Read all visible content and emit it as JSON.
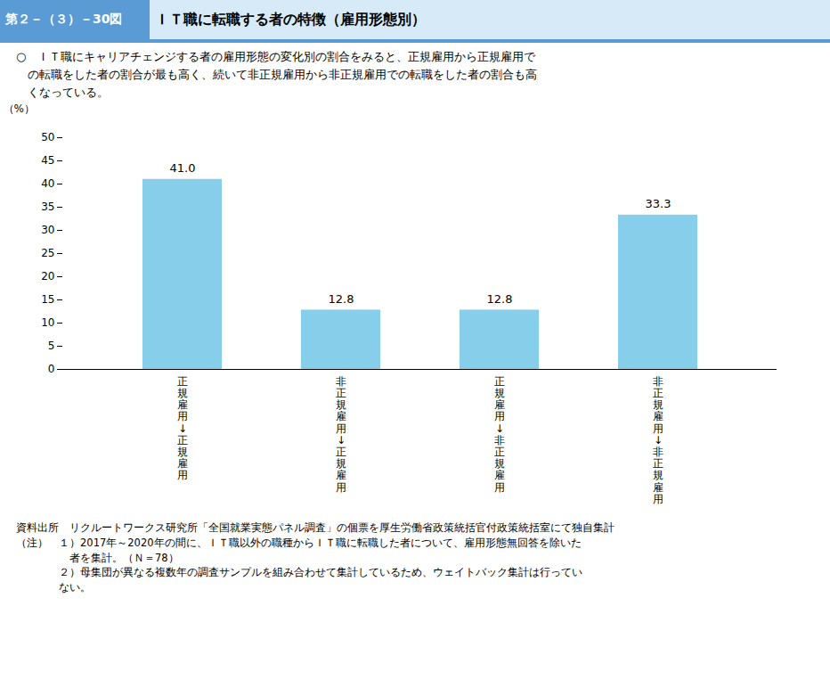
{
  "chart_data": {
    "type": "bar",
    "title": "ＩＴ職に転職する者の特徴（雇用形態別）",
    "subtitle": "○　ＩＴ職にキャリアチェンジする者の雇用形態の変化別の割合をみると、正規雇用から正規雇用で\n　の転職をした者の割合が最も高く、続いて非正規雇用から非正規雇用での転職をした者の割合も高\n　くなっている。",
    "annotations": [
      "第２－（３）－30図",
      "資料出所　リクルートワークス研究所「全国就業実態パネル調査」の個票を厚生労働省政策統括官付政策統括室にて独自集計",
      "（注）　１）2017年～2020年の間に、ＩＴ職以外の職種からＩＴ職に転職した者について、雇用形態無回答を除いた",
      "　　　　　者を集計。（Ｎ＝78）",
      "　　　　２）母集団が異なる複数年の調査サンプルを組み合わせて集計しているため、ウェイトバック集計は行ってい",
      "　　　　ない。"
    ],
    "ylabel": "（%）",
    "categories": [
      "正\n規\n雇\n用\n↓\n正\n規\n雇\n用",
      "非\n正\n規\n雇\n用\n↓\n正\n規\n雇\n用",
      "正\n規\n雇\n用\n↓\n非\n正\n規\n雇\n用",
      "非\n正\n規\n雇\n用\n↓\n非\n正\n規\n雇\n用"
    ],
    "values": [
      41.0,
      12.8,
      12.8,
      33.3
    ],
    "value_labels": [
      "41.0",
      "12.8",
      "12.8",
      "33.3"
    ],
    "data_labels": true,
    "color": "#87CEEB",
    "ylim": [
      0,
      50
    ],
    "yticks": [
      0,
      5,
      10,
      15,
      20,
      25,
      30,
      35,
      40,
      45,
      50
    ],
    "grid": false
  }
}
